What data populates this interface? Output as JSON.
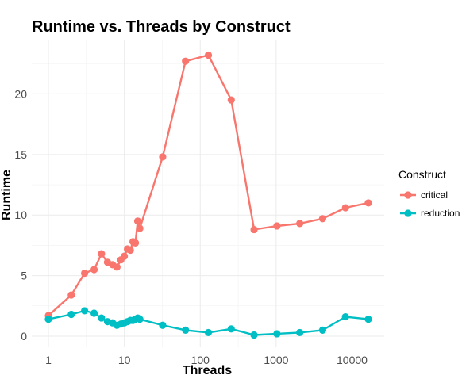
{
  "chart_data": {
    "type": "line",
    "title": "Runtime vs. Threads by Construct",
    "xlabel": "Threads",
    "ylabel": "Runtime",
    "x_scale": "log10",
    "xlim": [
      1,
      16384
    ],
    "ylim": [
      0,
      23.3
    ],
    "x_ticks": [
      1,
      10,
      100,
      1000,
      10000
    ],
    "x_tick_labels": [
      "1",
      "10",
      "100",
      "1000",
      "10000"
    ],
    "y_ticks": [
      0,
      5,
      10,
      15,
      20
    ],
    "y_tick_labels": [
      "0",
      "5",
      "10",
      "15",
      "20"
    ],
    "grid": true,
    "legend": {
      "title": "Construct",
      "position": "right"
    },
    "series": [
      {
        "name": "critical",
        "color": "#F8766D",
        "x": [
          1,
          2,
          3,
          4,
          5,
          6,
          7,
          8,
          9,
          10,
          11,
          12,
          13,
          14,
          15,
          16,
          32,
          64,
          128,
          256,
          512,
          1024,
          2048,
          4096,
          8192,
          16384
        ],
        "y": [
          1.7,
          3.4,
          5.2,
          5.5,
          6.8,
          6.1,
          5.9,
          5.7,
          6.3,
          6.6,
          7.2,
          7.1,
          7.8,
          7.7,
          9.5,
          8.9,
          14.8,
          22.7,
          23.2,
          19.5,
          8.8,
          9.1,
          9.3,
          9.7,
          10.6,
          11.0
        ]
      },
      {
        "name": "reduction",
        "color": "#00BFC4",
        "x": [
          1,
          2,
          3,
          4,
          5,
          6,
          7,
          8,
          9,
          10,
          11,
          12,
          13,
          14,
          15,
          16,
          32,
          64,
          128,
          256,
          512,
          1024,
          2048,
          4096,
          8192,
          16384
        ],
        "y": [
          1.4,
          1.8,
          2.1,
          1.9,
          1.5,
          1.2,
          1.1,
          0.9,
          1.0,
          1.1,
          1.2,
          1.3,
          1.3,
          1.4,
          1.5,
          1.4,
          0.9,
          0.5,
          0.3,
          0.6,
          0.1,
          0.2,
          0.3,
          0.5,
          1.6,
          1.4
        ]
      }
    ]
  }
}
